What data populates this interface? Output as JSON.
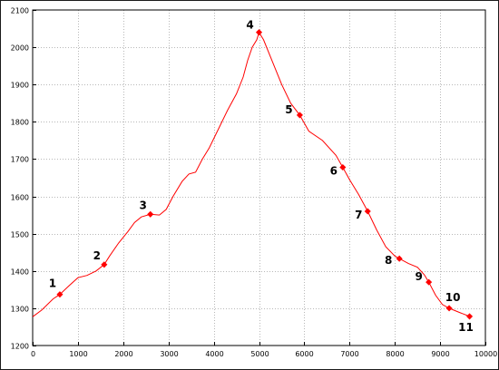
{
  "chart_data": {
    "type": "line",
    "title": "",
    "xlabel": "",
    "ylabel": "",
    "xlim": [
      0,
      10000
    ],
    "ylim": [
      1200,
      2100
    ],
    "x_ticks": [
      0,
      1000,
      2000,
      3000,
      4000,
      5000,
      6000,
      7000,
      8000,
      9000,
      10000
    ],
    "y_ticks": [
      1200,
      1300,
      1400,
      1500,
      1600,
      1700,
      1800,
      1900,
      2000,
      2100
    ],
    "grid": true,
    "line_color": "#ff0000",
    "marker_color": "#ff0000",
    "series": [
      {
        "values": [
          {
            "x": 0,
            "y": 1277
          },
          {
            "x": 200,
            "y": 1295
          },
          {
            "x": 450,
            "y": 1325
          },
          {
            "x": 600,
            "y": 1337
          },
          {
            "x": 800,
            "y": 1360
          },
          {
            "x": 1000,
            "y": 1382
          },
          {
            "x": 1200,
            "y": 1388
          },
          {
            "x": 1400,
            "y": 1400
          },
          {
            "x": 1580,
            "y": 1417
          },
          {
            "x": 1700,
            "y": 1440
          },
          {
            "x": 1900,
            "y": 1475
          },
          {
            "x": 2100,
            "y": 1505
          },
          {
            "x": 2250,
            "y": 1530
          },
          {
            "x": 2400,
            "y": 1545
          },
          {
            "x": 2600,
            "y": 1552
          },
          {
            "x": 2800,
            "y": 1550
          },
          {
            "x": 2950,
            "y": 1565
          },
          {
            "x": 3100,
            "y": 1600
          },
          {
            "x": 3300,
            "y": 1640
          },
          {
            "x": 3450,
            "y": 1660
          },
          {
            "x": 3600,
            "y": 1665
          },
          {
            "x": 3750,
            "y": 1700
          },
          {
            "x": 3900,
            "y": 1730
          },
          {
            "x": 4100,
            "y": 1780
          },
          {
            "x": 4300,
            "y": 1830
          },
          {
            "x": 4500,
            "y": 1875
          },
          {
            "x": 4650,
            "y": 1920
          },
          {
            "x": 4750,
            "y": 1965
          },
          {
            "x": 4850,
            "y": 2000
          },
          {
            "x": 4950,
            "y": 2020
          },
          {
            "x": 5000,
            "y": 2040
          },
          {
            "x": 5100,
            "y": 2020
          },
          {
            "x": 5300,
            "y": 1960
          },
          {
            "x": 5500,
            "y": 1900
          },
          {
            "x": 5700,
            "y": 1850
          },
          {
            "x": 5900,
            "y": 1818
          },
          {
            "x": 6100,
            "y": 1775
          },
          {
            "x": 6400,
            "y": 1750
          },
          {
            "x": 6700,
            "y": 1710
          },
          {
            "x": 6850,
            "y": 1678
          },
          {
            "x": 7000,
            "y": 1645
          },
          {
            "x": 7200,
            "y": 1605
          },
          {
            "x": 7400,
            "y": 1560
          },
          {
            "x": 7600,
            "y": 1510
          },
          {
            "x": 7800,
            "y": 1465
          },
          {
            "x": 8000,
            "y": 1440
          },
          {
            "x": 8100,
            "y": 1433
          },
          {
            "x": 8300,
            "y": 1420
          },
          {
            "x": 8500,
            "y": 1410
          },
          {
            "x": 8650,
            "y": 1390
          },
          {
            "x": 8750,
            "y": 1370
          },
          {
            "x": 8900,
            "y": 1335
          },
          {
            "x": 9050,
            "y": 1310
          },
          {
            "x": 9200,
            "y": 1300
          },
          {
            "x": 9400,
            "y": 1290
          },
          {
            "x": 9650,
            "y": 1278
          }
        ]
      }
    ],
    "waypoints": [
      {
        "label": "1",
        "x": 600,
        "y": 1337
      },
      {
        "label": "2",
        "x": 1580,
        "y": 1417
      },
      {
        "label": "3",
        "x": 2600,
        "y": 1552
      },
      {
        "label": "4",
        "x": 5000,
        "y": 2040
      },
      {
        "label": "5",
        "x": 5900,
        "y": 1818
      },
      {
        "label": "6",
        "x": 6850,
        "y": 1678
      },
      {
        "label": "7",
        "x": 7400,
        "y": 1560
      },
      {
        "label": "8",
        "x": 8100,
        "y": 1433
      },
      {
        "label": "9",
        "x": 8750,
        "y": 1370
      },
      {
        "label": "10",
        "x": 9200,
        "y": 1300
      },
      {
        "label": "11",
        "x": 9650,
        "y": 1278
      }
    ]
  }
}
